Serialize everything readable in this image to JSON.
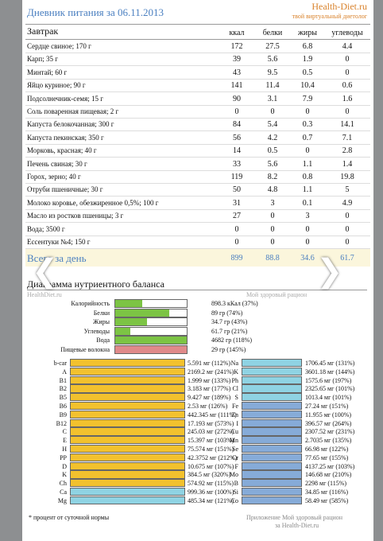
{
  "header": {
    "title": "Дневник питания за 06.11.2013",
    "brand": "Health-Diet.ru",
    "tagline": "твой виртуальный диетолог"
  },
  "table": {
    "section": "Завтрак",
    "columns": [
      "ккал",
      "белки",
      "жиры",
      "углеводы"
    ],
    "rows": [
      [
        "Сердце свиное; 170 г",
        172,
        27.5,
        6.8,
        4.4
      ],
      [
        "Карп; 35 г",
        39,
        5.6,
        1.9,
        0
      ],
      [
        "Минтай; 60 г",
        43,
        9.5,
        0.5,
        0
      ],
      [
        "Яйцо куриное; 90 г",
        141,
        11.4,
        10.4,
        0.6
      ],
      [
        "Подсолнечник-семя; 15 г",
        90,
        3.1,
        7.9,
        1.6
      ],
      [
        "Соль поваренная пищевая; 2 г",
        0,
        0,
        0,
        0
      ],
      [
        "Капуста белокочанная; 300 г",
        84,
        5.4,
        0.3,
        14.1
      ],
      [
        "Капуста пекинская; 350 г",
        56,
        4.2,
        0.7,
        7.1
      ],
      [
        "Морковь, красная; 40 г",
        14,
        0.5,
        0,
        2.8
      ],
      [
        "Печень свиная; 30 г",
        33,
        5.6,
        1.1,
        1.4
      ],
      [
        "Горох, зерно; 40 г",
        119,
        8.2,
        0.8,
        19.8
      ],
      [
        "Отруби пшеничные; 30 г",
        50,
        4.8,
        1.1,
        5
      ],
      [
        "Молоко коровье, обезжиренное 0,5%; 100 г",
        31,
        3,
        0.1,
        4.9
      ],
      [
        "Масло из ростков пшеницы; 3 г",
        27,
        0,
        3,
        0
      ],
      [
        "Вода; 3500 г",
        0,
        0,
        0,
        0
      ],
      [
        "Ессентуки №4; 150 г",
        0,
        0,
        0,
        0
      ]
    ],
    "total": {
      "label": "Всего за день",
      "values": [
        899,
        88.8,
        34.6,
        61.7
      ]
    }
  },
  "diagram": {
    "title": "Диаграмма нутриентного баланса",
    "source": "HealthDiet.ru",
    "app": "Мой здоровый рацион",
    "balance": [
      {
        "name": "Калорийность",
        "label": "898.3 кКал (37%)",
        "percent": 37,
        "color": "#7cc444"
      },
      {
        "name": "Белки",
        "label": "89 гр (74%)",
        "percent": 74,
        "color": "#7cc444"
      },
      {
        "name": "Жиры",
        "label": "34.7 гр (43%)",
        "percent": 43,
        "color": "#7cc444"
      },
      {
        "name": "Углеводы",
        "label": "61.7 гр (21%)",
        "percent": 21,
        "color": "#7cc444"
      },
      {
        "name": "Вода",
        "label": "4682 гр (118%)",
        "percent": 118,
        "color": "#7cc444"
      },
      {
        "name": "Пищевые волокна",
        "label": "29 гр (145%)",
        "percent": 145,
        "color": "#e08a8a"
      }
    ],
    "vitamins": [
      {
        "name": "b-car",
        "label": "5.591 мг (112%)",
        "percent": 112,
        "color": "#f2c12e"
      },
      {
        "name": "A",
        "label": "2169.2 мг (241%)",
        "percent": 241,
        "color": "#f2c12e"
      },
      {
        "name": "B1",
        "label": "1.999 мг (133%)",
        "percent": 133,
        "color": "#f2c12e"
      },
      {
        "name": "B2",
        "label": "3.183 мг (177%)",
        "percent": 177,
        "color": "#f2c12e"
      },
      {
        "name": "B5",
        "label": "9.427 мг (189%)",
        "percent": 189,
        "color": "#f2c12e"
      },
      {
        "name": "B6",
        "label": "2.53 мг (126%)",
        "percent": 126,
        "color": "#f2c12e"
      },
      {
        "name": "B9",
        "label": "442.345 мг (111%)",
        "percent": 111,
        "color": "#f2c12e"
      },
      {
        "name": "B12",
        "label": "17.193 мг (573%)",
        "percent": 573,
        "color": "#f2c12e"
      },
      {
        "name": "C",
        "label": "245.03 мг (272%)",
        "percent": 272,
        "color": "#f2c12e"
      },
      {
        "name": "E",
        "label": "15.397 мг (103%)",
        "percent": 103,
        "color": "#f2c12e"
      },
      {
        "name": "H",
        "label": "75.574 мг (151%)",
        "percent": 151,
        "color": "#f2c12e"
      },
      {
        "name": "PP",
        "label": "42.3752 мг (212%)",
        "percent": 212,
        "color": "#f2c12e"
      },
      {
        "name": "D",
        "label": "10.675 мг (107%)",
        "percent": 107,
        "color": "#f2c12e"
      },
      {
        "name": "K",
        "label": "384.5 мг (320%)",
        "percent": 320,
        "color": "#f2c12e"
      },
      {
        "name": "Ch",
        "label": "574.92 мг (115%)",
        "percent": 115,
        "color": "#f2c12e"
      },
      {
        "name": "Ca",
        "label": "999.36 мг (100%)",
        "percent": 100,
        "color": "#8fd3e3"
      },
      {
        "name": "Mg",
        "label": "485.34 мг (121%)",
        "percent": 121,
        "color": "#8fd3e3"
      }
    ],
    "minerals": [
      {
        "name": "Na",
        "label": "1706.45 мг (131%)",
        "percent": 131,
        "color": "#8fd3e3"
      },
      {
        "name": "K",
        "label": "3601.18 мг (144%)",
        "percent": 144,
        "color": "#8fd3e3"
      },
      {
        "name": "Ph",
        "label": "1575.6 мг (197%)",
        "percent": 197,
        "color": "#8fd3e3"
      },
      {
        "name": "Cl",
        "label": "2325.65 мг (101%)",
        "percent": 101,
        "color": "#8fd3e3"
      },
      {
        "name": "S",
        "label": "1013.4 мг (101%)",
        "percent": 101,
        "color": "#8fd3e3"
      },
      {
        "name": "Fe",
        "label": "27.24 мг (151%)",
        "percent": 151,
        "color": "#86abd8"
      },
      {
        "name": "Zn",
        "label": "11.955 мг (100%)",
        "percent": 100,
        "color": "#86abd8"
      },
      {
        "name": "I",
        "label": "396.57 мг (264%)",
        "percent": 264,
        "color": "#86abd8"
      },
      {
        "name": "Cu",
        "label": "2307.52 мг (231%)",
        "percent": 231,
        "color": "#86abd8"
      },
      {
        "name": "Mn",
        "label": "2.7035 мг (135%)",
        "percent": 135,
        "color": "#86abd8"
      },
      {
        "name": "Se",
        "label": "66.98 мг (122%)",
        "percent": 122,
        "color": "#86abd8"
      },
      {
        "name": "Cr",
        "label": "77.65 мг (155%)",
        "percent": 155,
        "color": "#86abd8"
      },
      {
        "name": "F",
        "label": "4137.25 мг (103%)",
        "percent": 103,
        "color": "#86abd8"
      },
      {
        "name": "Mo",
        "label": "146.68 мг (210%)",
        "percent": 210,
        "color": "#86abd8"
      },
      {
        "name": "B",
        "label": "2298 мг (115%)",
        "percent": 115,
        "color": "#86abd8"
      },
      {
        "name": "Si",
        "label": "34.85 мг (116%)",
        "percent": 116,
        "color": "#86abd8"
      },
      {
        "name": "Co",
        "label": "58.49 мг (585%)",
        "percent": 585,
        "color": "#86abd8"
      }
    ],
    "footnote": "* процент от суточной нормы",
    "app_footer": [
      "Приложение Мой здоровый рацион",
      "за Health-Diet.ru"
    ]
  }
}
